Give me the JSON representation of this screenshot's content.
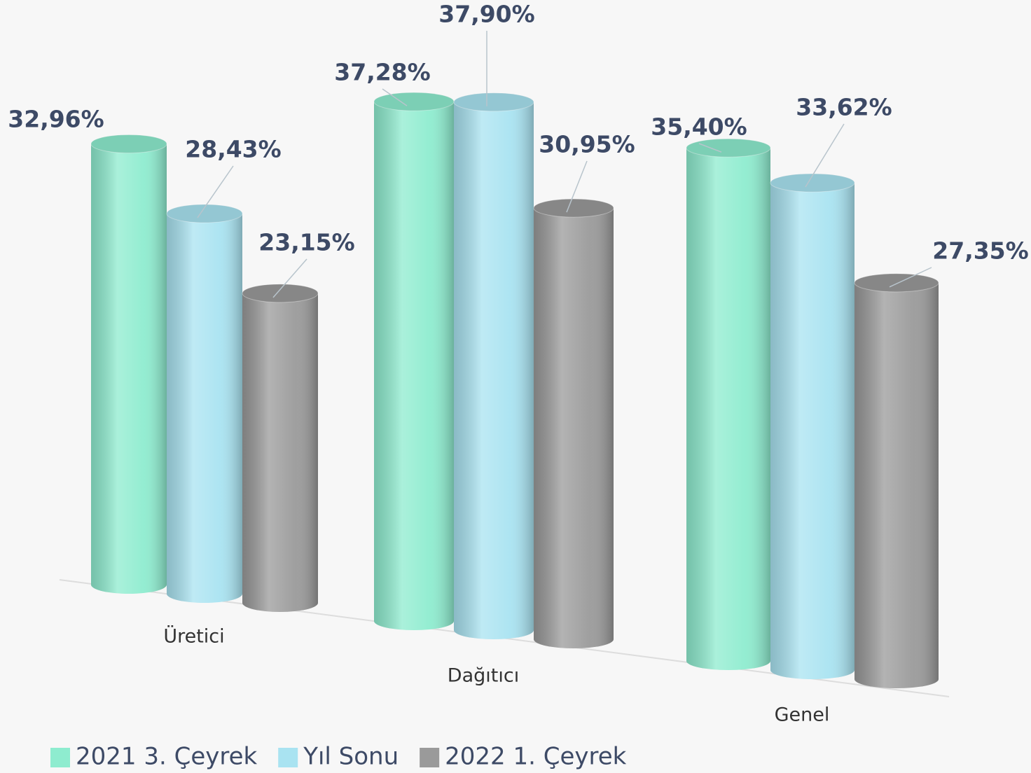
{
  "chart_data": {
    "type": "bar3d",
    "categories": [
      "Üretici",
      "Dağıtıcı",
      "Genel"
    ],
    "series": [
      {
        "name": "2021 3. Çeyrek",
        "color": "#8eeccf",
        "values": [
          32.96,
          37.28,
          35.4
        ],
        "value_labels": [
          "32,96%",
          "37,28%",
          "35,40%"
        ]
      },
      {
        "name": "Yıl Sonu",
        "color": "#a9e3f1",
        "values": [
          28.43,
          37.9,
          33.62
        ],
        "value_labels": [
          "28,43%",
          "37,90%",
          "33,62%"
        ]
      },
      {
        "name": "2022 1. Çeyrek",
        "color": "#9a9a9a",
        "values": [
          23.15,
          30.95,
          27.35
        ],
        "value_labels": [
          "23,15%",
          "30,95%",
          "27,35%"
        ]
      }
    ],
    "legend": "bottom-left"
  }
}
